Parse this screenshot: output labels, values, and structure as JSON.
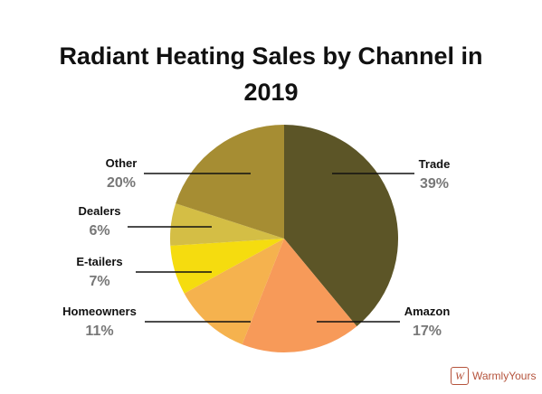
{
  "chart_data": {
    "type": "pie",
    "title_lines": [
      "Radiant Heating Sales by Channel in",
      "2019"
    ],
    "slices": [
      {
        "label": "Trade",
        "value": 39,
        "pct_text": "39%",
        "color": "#5c5527"
      },
      {
        "label": "Amazon",
        "value": 17,
        "pct_text": "17%",
        "color": "#f79a59"
      },
      {
        "label": "Homeowners",
        "value": 11,
        "pct_text": "11%",
        "color": "#f5b24e"
      },
      {
        "label": "E-tailers",
        "value": 7,
        "pct_text": "7%",
        "color": "#f5dc0f"
      },
      {
        "label": "Dealers",
        "value": 6,
        "pct_text": "6%",
        "color": "#d4be45"
      },
      {
        "label": "Other",
        "value": 20,
        "pct_text": "20%",
        "color": "#a68d33"
      }
    ]
  },
  "branding": {
    "logo_mark": "W",
    "logo_text": "WarmlyYours"
  }
}
